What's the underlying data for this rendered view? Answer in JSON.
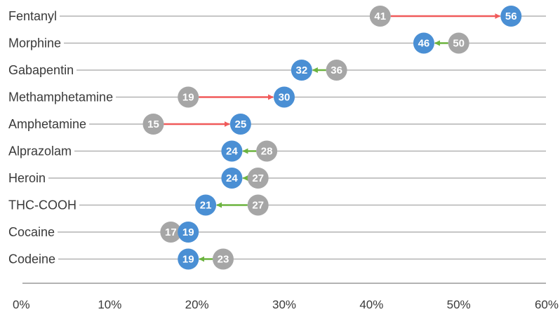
{
  "chart_data": {
    "type": "dumbbell",
    "categories": [
      "Fentanyl",
      "Morphine",
      "Gabapentin",
      "Methamphetamine",
      "Amphetamine",
      "Alprazolam",
      "Heroin",
      "THC-COOH",
      "Cocaine",
      "Codeine"
    ],
    "series": [
      {
        "values": [
          41,
          50,
          36,
          19,
          15,
          28,
          27,
          27,
          17,
          23
        ],
        "color": "#a6a6a6"
      },
      {
        "values": [
          56,
          46,
          32,
          30,
          25,
          24,
          24,
          21,
          19,
          19
        ],
        "color": "#4a8fd4"
      }
    ],
    "x_ticks": [
      "0%",
      "10%",
      "20%",
      "30%",
      "40%",
      "50%",
      "60%"
    ],
    "xlim": [
      0,
      60
    ],
    "increase_color": "#f05a5a",
    "decrease_color": "#6cb33f",
    "guideline_color": "#b3b3b3",
    "grid": false
  }
}
